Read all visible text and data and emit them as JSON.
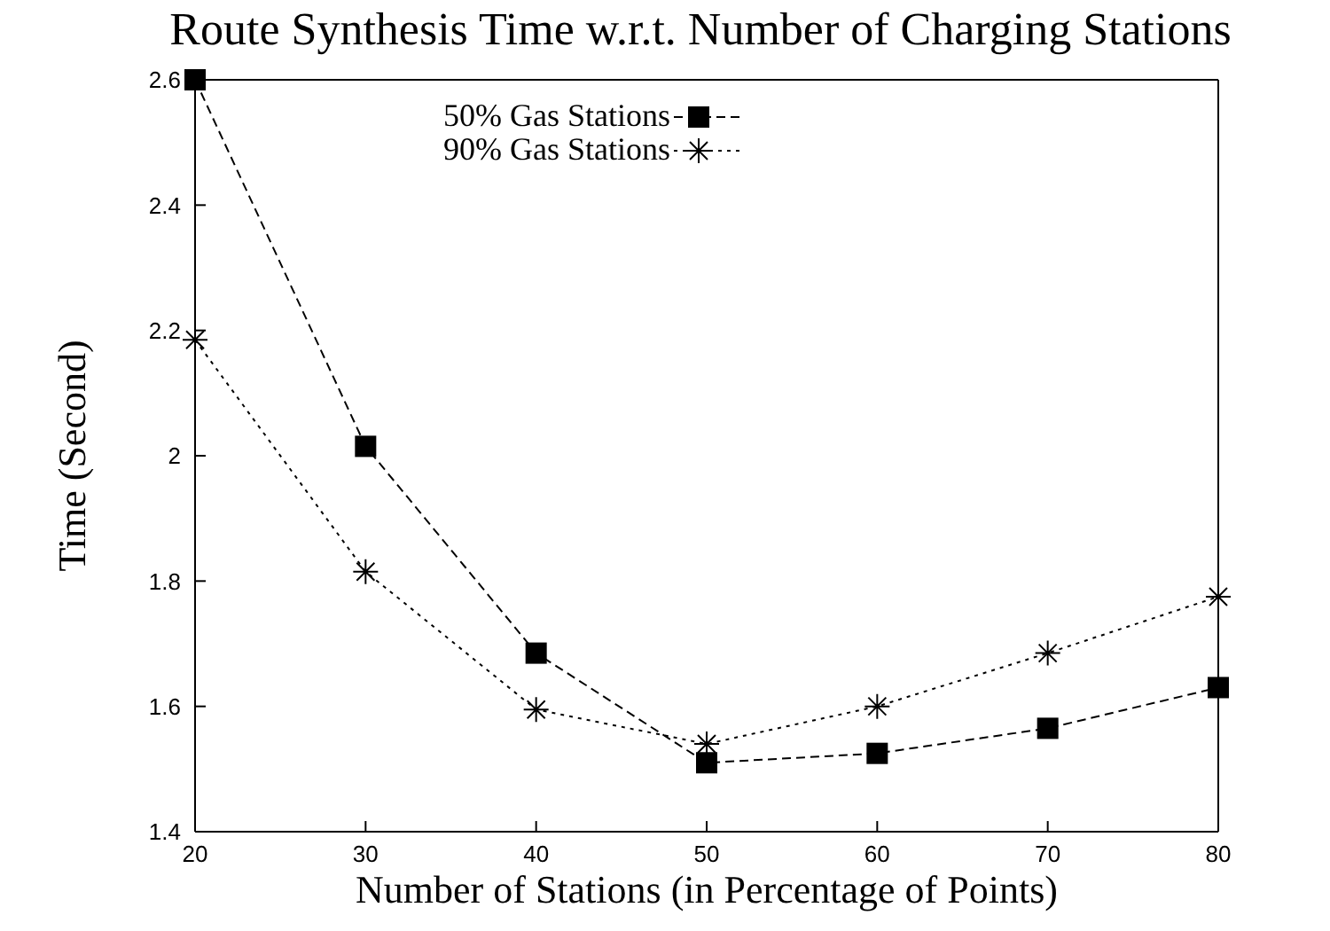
{
  "chart_data": {
    "type": "line",
    "title": "Route Synthesis Time w.r.t. Number of Charging Stations",
    "xlabel": "Number of Stations (in Percentage of Points)",
    "ylabel": "Time (Second)",
    "x": [
      20,
      30,
      40,
      50,
      60,
      70,
      80
    ],
    "xlim": [
      20,
      80
    ],
    "xticks": [
      20,
      30,
      40,
      50,
      60,
      70,
      80
    ],
    "ylim": [
      1.4,
      2.6
    ],
    "yticks": [
      1.4,
      1.6,
      1.8,
      2,
      2.2,
      2.4,
      2.6
    ],
    "legend": "top",
    "grid": false,
    "series": [
      {
        "name": "50% Gas Stations",
        "color": "#000000",
        "marker": "square",
        "line_style": "dashed",
        "values": [
          2.6,
          2.015,
          1.685,
          1.51,
          1.525,
          1.565,
          1.63
        ]
      },
      {
        "name": "90% Gas Stations",
        "color": "#000000",
        "marker": "cross",
        "line_style": "dotted",
        "values": [
          2.185,
          1.815,
          1.595,
          1.54,
          1.6,
          1.685,
          1.775
        ]
      }
    ]
  }
}
